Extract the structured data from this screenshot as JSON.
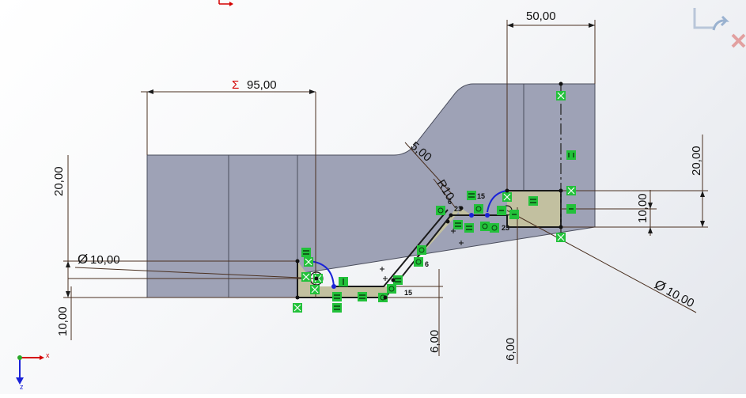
{
  "dimensions": {
    "top_width": "50,00",
    "sum_width": "95,00",
    "sum_symbol": "Σ",
    "left_height": "20,00",
    "right_height": "20,00",
    "left_dia": "10,00",
    "left_dia_symbol": "Ø",
    "right_dia": "10,00",
    "right_dia_symbol": "Ø",
    "left_offset": "10,00",
    "right_offset": "10,00",
    "chamfer": "5,00",
    "radius": "R10",
    "bottom_left_six": "6,00",
    "bottom_right_six": "6,00"
  },
  "relations": {
    "r15a": "15",
    "r15b": "15",
    "r23a": "23",
    "r23b": "23",
    "r6a": "6",
    "r6b": "6"
  },
  "triad": {
    "x": "x",
    "z": "z"
  },
  "colors": {
    "body_face": "#9ea2b6",
    "sketch_fill": "#c2c0a0",
    "relation_green": "#22c13a",
    "sketch_blue": "#1a22d8",
    "dimension_red": "#d40000"
  }
}
